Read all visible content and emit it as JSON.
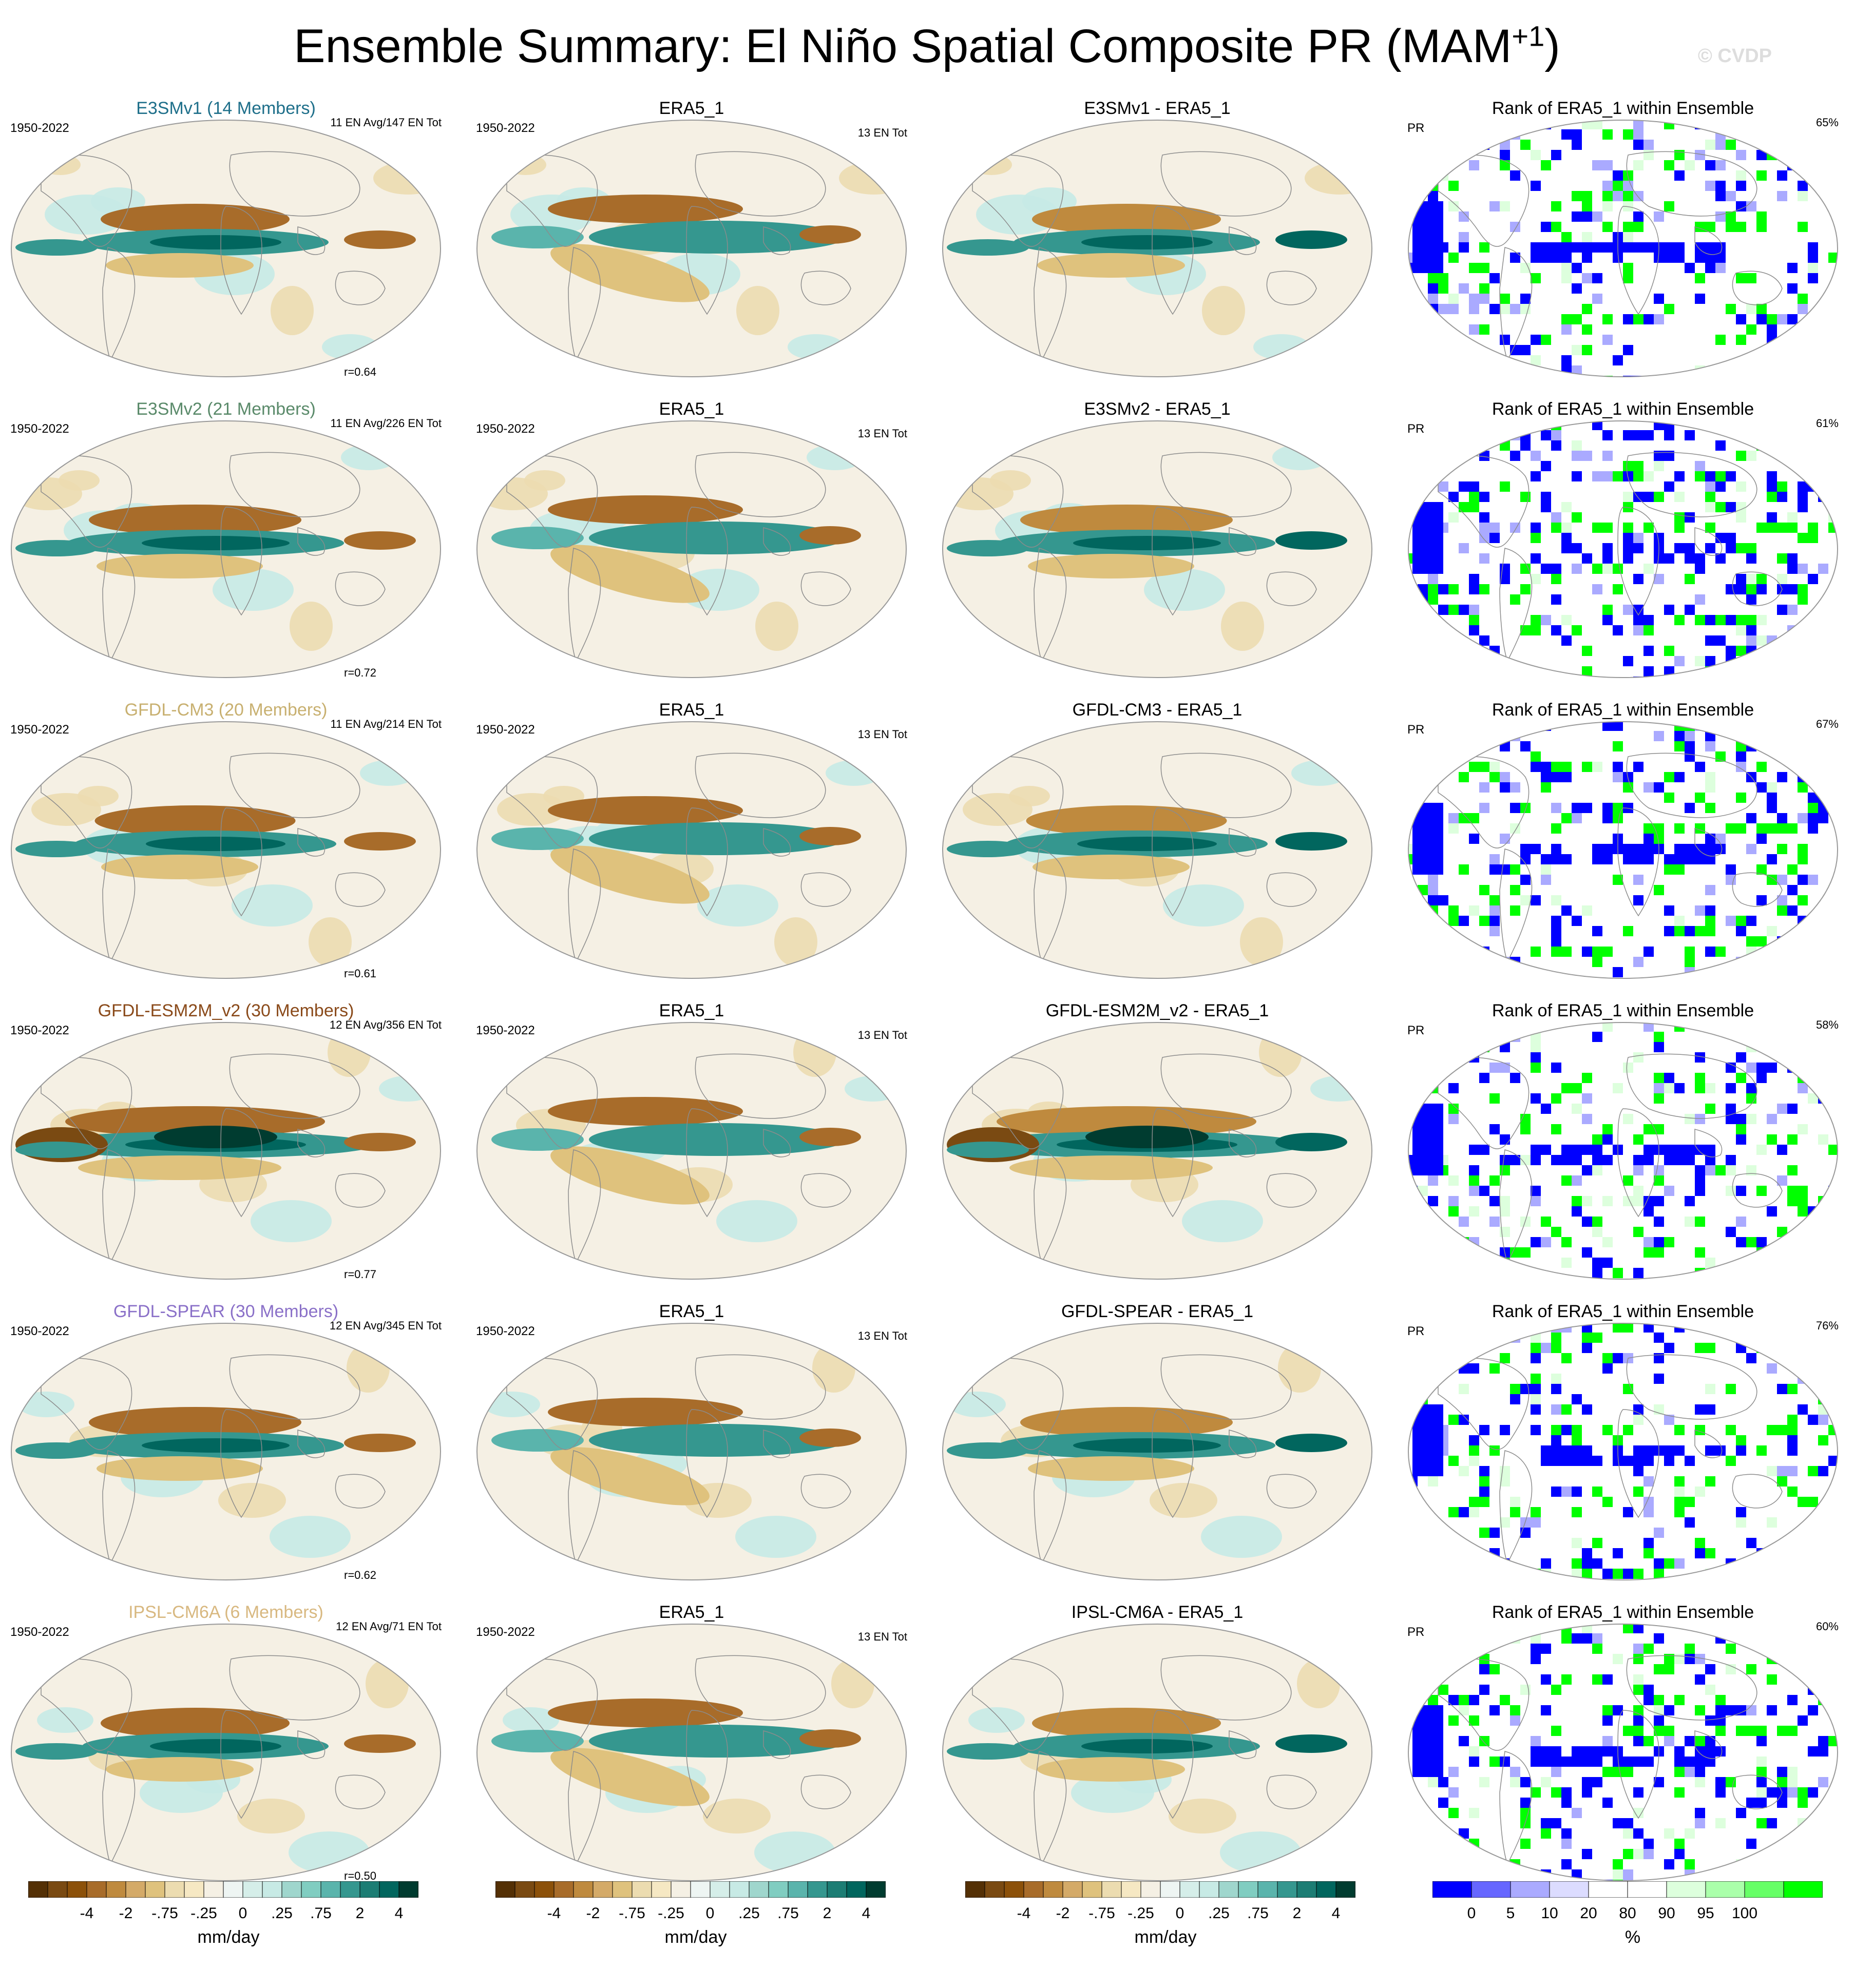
{
  "title": {
    "main": "Ensemble Summary: El Niño Spatial Composite PR (MAM",
    "superscript": "+1",
    "close": ")"
  },
  "watermark": "© CVDP",
  "rows": [
    {
      "model": {
        "title": "E3SMv1 (14 Members)",
        "title_color": "#1e6f8a",
        "period": "1950-2022",
        "count": "11 EN Avg/147 EN Tot",
        "correlation": "r=0.64"
      },
      "obs": {
        "title": "ERA5_1",
        "period": "1950-2022",
        "count": "13 EN Tot"
      },
      "diff": {
        "title": "E3SMv1 - ERA5_1"
      },
      "rank": {
        "title": "Rank of ERA5_1 within Ensemble",
        "variable": "PR",
        "percent": "65%"
      }
    },
    {
      "model": {
        "title": "E3SMv2 (21 Members)",
        "title_color": "#5a8a6a",
        "period": "1950-2022",
        "count": "11 EN Avg/226 EN Tot",
        "correlation": "r=0.72"
      },
      "obs": {
        "title": "ERA5_1",
        "period": "1950-2022",
        "count": "13 EN Tot"
      },
      "diff": {
        "title": "E3SMv2 - ERA5_1"
      },
      "rank": {
        "title": "Rank of ERA5_1 within Ensemble",
        "variable": "PR",
        "percent": "61%"
      }
    },
    {
      "model": {
        "title": "GFDL-CM3 (20 Members)",
        "title_color": "#c8b070",
        "period": "1950-2022",
        "count": "11 EN Avg/214 EN Tot",
        "correlation": "r=0.61"
      },
      "obs": {
        "title": "ERA5_1",
        "period": "1950-2022",
        "count": "13 EN Tot"
      },
      "diff": {
        "title": "GFDL-CM3 - ERA5_1"
      },
      "rank": {
        "title": "Rank of ERA5_1 within Ensemble",
        "variable": "PR",
        "percent": "67%"
      }
    },
    {
      "model": {
        "title": "GFDL-ESM2M_v2 (30 Members)",
        "title_color": "#8a4a1a",
        "period": "1950-2022",
        "count": "12 EN Avg/356 EN Tot",
        "correlation": "r=0.77"
      },
      "obs": {
        "title": "ERA5_1",
        "period": "1950-2022",
        "count": "13 EN Tot"
      },
      "diff": {
        "title": "GFDL-ESM2M_v2 - ERA5_1"
      },
      "rank": {
        "title": "Rank of ERA5_1 within Ensemble",
        "variable": "PR",
        "percent": "58%"
      }
    },
    {
      "model": {
        "title": "GFDL-SPEAR (30 Members)",
        "title_color": "#8a70c8",
        "period": "1950-2022",
        "count": "12 EN Avg/345 EN Tot",
        "correlation": "r=0.62"
      },
      "obs": {
        "title": "ERA5_1",
        "period": "1950-2022",
        "count": "13 EN Tot"
      },
      "diff": {
        "title": "GFDL-SPEAR - ERA5_1"
      },
      "rank": {
        "title": "Rank of ERA5_1 within Ensemble",
        "variable": "PR",
        "percent": "76%"
      }
    },
    {
      "model": {
        "title": "IPSL-CM6A (6 Members)",
        "title_color": "#d8b880",
        "period": "1950-2022",
        "count": "12 EN Avg/71 EN Tot",
        "correlation": "r=0.50"
      },
      "obs": {
        "title": "ERA5_1",
        "period": "1950-2022",
        "count": "13 EN Tot"
      },
      "diff": {
        "title": "IPSL-CM6A - ERA5_1"
      },
      "rank": {
        "title": "Rank of ERA5_1 within Ensemble",
        "variable": "PR",
        "percent": "60%"
      }
    }
  ],
  "colorbars": {
    "pr": {
      "unit": "mm/day",
      "tick_labels": [
        "-4",
        "-2",
        "-.75",
        "-.25",
        "0",
        ".25",
        ".75",
        "2",
        "4"
      ],
      "colors": [
        "#543005",
        "#7a4a12",
        "#8c510a",
        "#a86c2a",
        "#bf8a3e",
        "#d4aa68",
        "#dfc27d",
        "#ecdcb0",
        "#f6e8c3",
        "#f5f0e4",
        "#eef5f3",
        "#d5eee9",
        "#c7eae5",
        "#9fd6cd",
        "#80cdc1",
        "#5ab4ac",
        "#35978f",
        "#1c7d74",
        "#01665e",
        "#003c30"
      ]
    },
    "rank": {
      "unit": "%",
      "tick_labels": [
        "0",
        "5",
        "10",
        "20",
        "80",
        "90",
        "95",
        "100"
      ],
      "colors": [
        "#0000ff",
        "#6666ff",
        "#aaaaff",
        "#dcdcff",
        "#ffffff",
        "#ffffff",
        "#ddffdd",
        "#aaffaa",
        "#66ff66",
        "#00ff00"
      ]
    }
  }
}
